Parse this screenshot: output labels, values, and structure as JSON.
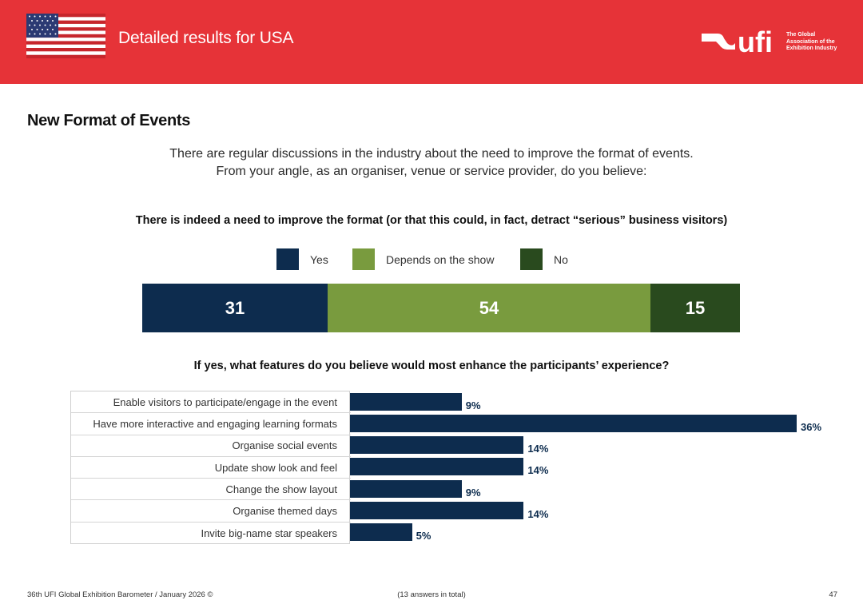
{
  "header": {
    "title": "Detailed results for USA",
    "logo_text": "ufi",
    "logo_tagline": [
      "The Global",
      "Association of the",
      "Exhibition Industry"
    ]
  },
  "section_title": "New Format of Events",
  "question": {
    "line1": "There are regular discussions in the industry about the need to improve the format of events.",
    "line2": "From your angle, as an organiser, venue or service provider, do you believe:"
  },
  "colors": {
    "brand_red": "#e63338",
    "navy": "#0d2c4e",
    "green": "#799b3e",
    "dark_green": "#294a1e"
  },
  "chart_data": [
    {
      "type": "bar",
      "orientation": "horizontal-stacked",
      "title": "There is indeed a need to improve the format (or that this could, in fact, detract “serious” business visitors)",
      "unit": "%",
      "series": [
        {
          "name": "Yes",
          "value": 31,
          "color": "#0d2c4e"
        },
        {
          "name": "Depends on the show",
          "value": 54,
          "color": "#799b3e"
        },
        {
          "name": "No",
          "value": 15,
          "color": "#294a1e"
        }
      ],
      "xlim": [
        0,
        100
      ],
      "legend": "top-center"
    },
    {
      "type": "bar",
      "orientation": "horizontal",
      "title": "If yes, what features do you believe would most enhance the participants’ experience?",
      "categories": [
        "Enable visitors to participate/engage in the event",
        "Have more interactive and engaging learning formats",
        "Organise social events",
        "Update show look and feel",
        "Change the show layout",
        "Organise themed days",
        "Invite big-name star speakers"
      ],
      "values": [
        9,
        36,
        14,
        14,
        9,
        14,
        5
      ],
      "value_labels": [
        "9%",
        "36%",
        "14%",
        "14%",
        "9%",
        "14%",
        "5%"
      ],
      "xlim": [
        0,
        36
      ],
      "color": "#0d2c4e"
    }
  ],
  "footer": {
    "left": "36th UFI Global Exhibition Barometer / January 2026 ©",
    "center": "(13 answers in total)",
    "page": "47"
  }
}
